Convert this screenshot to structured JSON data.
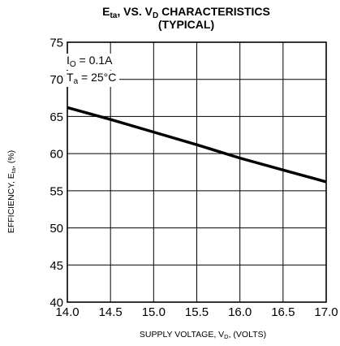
{
  "title": {
    "line1_main": "E",
    "line1_sub": "ta",
    "line1_mid": ", VS. V",
    "line1_sub2": "D",
    "line1_end": " CHARACTERISTICS",
    "line2": "(TYPICAL)"
  },
  "axis_labels": {
    "y_main": "EFFICIENCY, E",
    "y_sub": "ta",
    "y_end": ", (%)",
    "x_main": "SUPPLY VOLTAGE, V",
    "x_sub": "D",
    "x_end": ", (VOLTS)"
  },
  "annotation": {
    "io_main": "I",
    "io_sub": "O",
    "io_val": " = 0.1A",
    "ta_main": "T",
    "ta_sub": "a",
    "ta_val": " = 25°C"
  },
  "chart_data": {
    "type": "line",
    "title": "Eta, VS. VD CHARACTERISTICS (TYPICAL)",
    "xlabel": "SUPPLY VOLTAGE, VD, (VOLTS)",
    "ylabel": "EFFICIENCY, Eta, (%)",
    "xlim": [
      14.0,
      17.0
    ],
    "ylim": [
      40,
      75
    ],
    "grid": true,
    "x_ticks": [
      "14.0",
      "14.5",
      "15.0",
      "15.5",
      "16.0",
      "16.5",
      "17.0"
    ],
    "y_ticks": [
      "40",
      "45",
      "50",
      "55",
      "60",
      "65",
      "70",
      "75"
    ],
    "series": [
      {
        "x": [
          14.0,
          14.5,
          15.0,
          15.5,
          16.0,
          16.5,
          17.0
        ],
        "y": [
          66.2,
          64.6,
          62.9,
          61.2,
          59.4,
          57.8,
          56.2
        ]
      }
    ],
    "colors": {
      "line": "#000000",
      "grid": "#000000"
    }
  }
}
